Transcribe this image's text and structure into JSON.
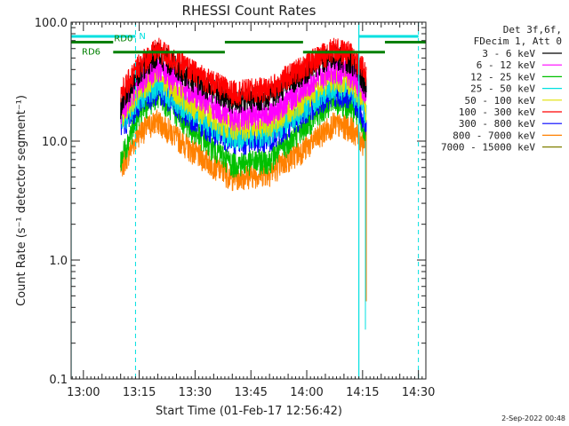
{
  "chart_data": {
    "type": "line",
    "title": "RHESSI Count Rates",
    "xlabel": "Start Time (01-Feb-17 12:56:42)",
    "ylabel": "Count Rate (s⁻¹ detector segment⁻¹)",
    "yscale": "log",
    "ylim": [
      0.1,
      100
    ],
    "xlim": [
      "12:56:42",
      "14:32:00"
    ],
    "x_ticks": [
      "13:00",
      "13:15",
      "13:30",
      "13:45",
      "14:00",
      "14:15",
      "14:30"
    ],
    "y_ticks": [
      "0.1",
      "1.0",
      "10.0",
      "100.0"
    ],
    "grid": false,
    "legend_position": "right",
    "legend_header": [
      "Det 3f,6f,",
      "FDecim 1, Att 0"
    ],
    "series": [
      {
        "name": "3 - 6 keV",
        "color": "#000000",
        "x": [
          "13:10",
          "13:15",
          "13:20",
          "13:30",
          "13:40",
          "13:50",
          "14:00",
          "14:07",
          "14:12",
          "14:15",
          "14:16"
        ],
        "y": [
          20,
          40,
          55,
          33,
          22,
          24,
          40,
          52,
          48,
          35,
          30
        ]
      },
      {
        "name": "6 - 12 keV",
        "color": "#ff00ff",
        "x": [
          "13:10",
          "13:15",
          "13:20",
          "13:30",
          "13:40",
          "13:50",
          "14:00",
          "14:07",
          "14:12",
          "14:15",
          "14:16"
        ],
        "y": [
          18,
          32,
          42,
          25,
          16,
          17,
          30,
          40,
          37,
          28,
          24
        ]
      },
      {
        "name": "12 - 25 keV",
        "color": "#00c000",
        "x": [
          "13:10",
          "13:15",
          "13:20",
          "13:30",
          "13:40",
          "13:50",
          "14:00",
          "14:07",
          "14:12",
          "14:15",
          "14:16"
        ],
        "y": [
          7,
          18,
          25,
          12,
          6.5,
          7,
          14,
          22,
          20,
          14,
          11
        ]
      },
      {
        "name": "25 - 50 keV",
        "color": "#00e0e0",
        "x": [
          "13:10",
          "13:15",
          "13:20",
          "13:30",
          "13:40",
          "13:50",
          "14:00",
          "14:07",
          "14:12",
          "14:15",
          "14:16"
        ],
        "y": [
          14,
          24,
          30,
          17,
          11,
          12,
          20,
          30,
          27,
          20,
          17
        ]
      },
      {
        "name": "50 - 100 keV",
        "color": "#e0e000",
        "x": [
          "13:10",
          "13:15",
          "13:20",
          "13:30",
          "13:40",
          "13:50",
          "14:00",
          "14:07",
          "14:12",
          "14:15",
          "14:16"
        ],
        "y": [
          16,
          28,
          36,
          20,
          13,
          14,
          24,
          35,
          32,
          23,
          19
        ]
      },
      {
        "name": "100 - 300 keV",
        "color": "#ff0000",
        "x": [
          "13:10",
          "13:15",
          "13:20",
          "13:30",
          "13:40",
          "13:50",
          "14:00",
          "14:07",
          "14:12",
          "14:15",
          "14:16"
        ],
        "y": [
          25,
          45,
          60,
          38,
          26,
          28,
          45,
          60,
          55,
          42,
          36
        ]
      },
      {
        "name": "300 - 800 keV",
        "color": "#0000ff",
        "x": [
          "13:10",
          "13:15",
          "13:20",
          "13:30",
          "13:40",
          "13:50",
          "14:00",
          "14:07",
          "14:12",
          "14:15",
          "14:16"
        ],
        "y": [
          13,
          21,
          27,
          15,
          10,
          10.5,
          18,
          26,
          24,
          17,
          14
        ]
      },
      {
        "name": "800 - 7000 keV",
        "color": "#ff8000",
        "x": [
          "13:10",
          "13:15",
          "13:20",
          "13:30",
          "13:40",
          "13:50",
          "14:00",
          "14:07",
          "14:12",
          "14:15",
          "14:16"
        ],
        "y": [
          6,
          12,
          15,
          8,
          5,
          5.5,
          9,
          14,
          13,
          10,
          9
        ]
      },
      {
        "name": "7000 - 15000 keV",
        "color": "#808000",
        "x": [],
        "y": []
      }
    ],
    "annotations": {
      "vertical_lines_solid": [
        "12:56:42",
        "14:14"
      ],
      "vertical_lines_dashed": [
        "13:14",
        "14:30"
      ],
      "color": "#00e0e0",
      "cyan_bars": [
        {
          "label": "N",
          "x0": "12:56:42",
          "x1": "13:14"
        },
        {
          "label": "",
          "x0": "14:14",
          "x1": "14:30"
        }
      ],
      "green_bars": [
        {
          "label": "RD0",
          "x0": "12:56:42",
          "x1": "13:08",
          "y": 68
        },
        {
          "label": "RD6",
          "x0": "13:08",
          "x1": "13:38",
          "y": 56
        },
        {
          "label": "",
          "x0": "13:38",
          "x1": "13:59",
          "y": 68
        },
        {
          "label": "",
          "x0": "13:59",
          "x1": "14:21",
          "y": 56
        },
        {
          "label": "",
          "x0": "14:21",
          "x1": "14:32",
          "y": 68
        }
      ]
    }
  },
  "footer_timestamp": "2-Sep-2022 00:48"
}
